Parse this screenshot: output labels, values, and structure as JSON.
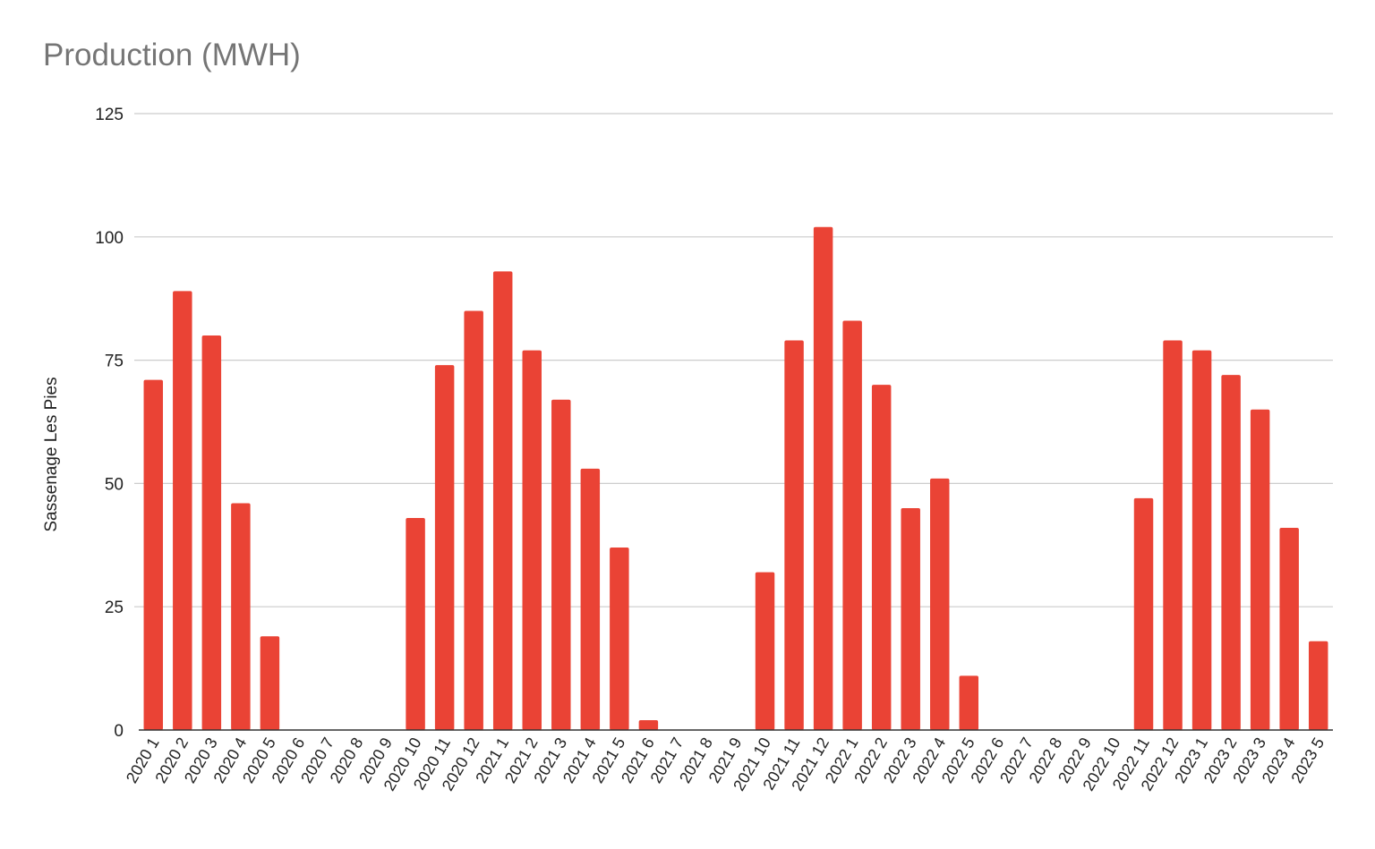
{
  "chart_data": {
    "type": "bar",
    "title": "Production (MWH)",
    "xlabel": "",
    "ylabel": "Sassenage Les Pies",
    "ylim": [
      0,
      125
    ],
    "yticks": [
      0,
      25,
      50,
      75,
      100,
      125
    ],
    "grid": true,
    "legend": "none",
    "bar_color": "#ea4335",
    "categories": [
      "2020 1",
      "2020 2",
      "2020 3",
      "2020 4",
      "2020 5",
      "2020 6",
      "2020 7",
      "2020 8",
      "2020 9",
      "2020 10",
      "2020 11",
      "2020 12",
      "2021 1",
      "2021 2",
      "2021 3",
      "2021 4",
      "2021 5",
      "2021 6",
      "2021 7",
      "2021 8",
      "2021 9",
      "2021 10",
      "2021 11",
      "2021 12",
      "2022 1",
      "2022 2",
      "2022 3",
      "2022 4",
      "2022 5",
      "2022 6",
      "2022 7",
      "2022 8",
      "2022 9",
      "2022 10",
      "2022 11",
      "2022 12",
      "2023 1",
      "2023 2",
      "2023 3",
      "2023 4",
      "2023 5"
    ],
    "values": [
      71,
      89,
      80,
      46,
      19,
      0,
      0,
      0,
      0,
      43,
      74,
      85,
      93,
      77,
      67,
      53,
      37,
      2,
      0,
      0,
      0,
      32,
      79,
      102,
      83,
      70,
      45,
      51,
      11,
      0,
      0,
      0,
      0,
      0,
      47,
      79,
      77,
      72,
      65,
      41,
      18
    ]
  }
}
